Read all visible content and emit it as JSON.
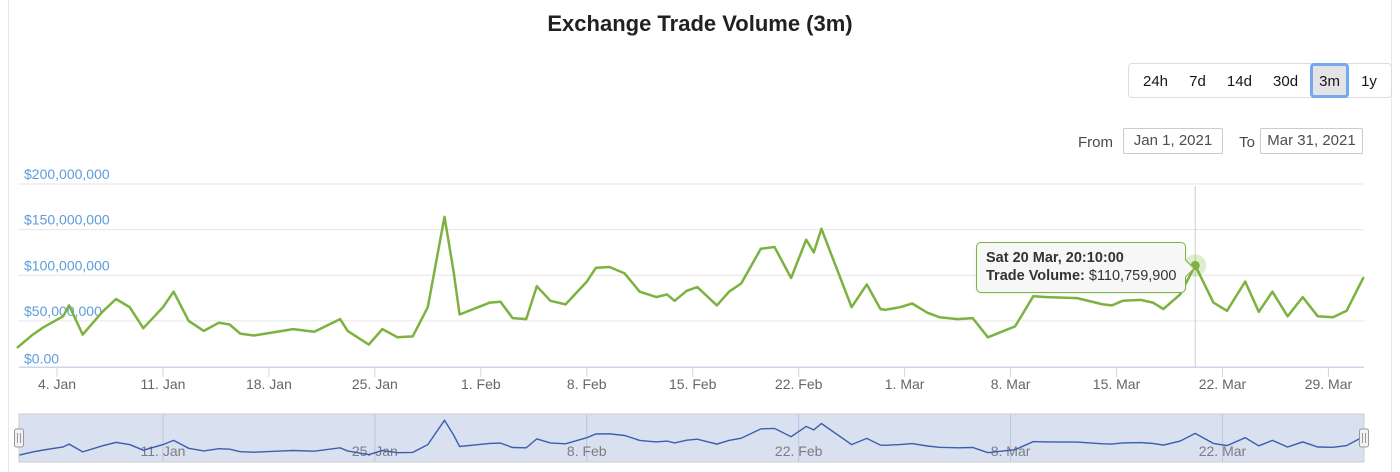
{
  "page": {
    "title": "Exchange Trade Volume (3m)"
  },
  "range_selector": {
    "buttons": [
      "24h",
      "7d",
      "14d",
      "30d",
      "3m",
      "1y"
    ],
    "selected": "3m",
    "selected_border_color": "#74a9f0",
    "from_label": "From",
    "from_value": "Jan 1, 2021",
    "to_label": "To",
    "to_value": "Mar 31, 2021"
  },
  "tooltip": {
    "timestamp": "Sat 20 Mar, 20:10:00",
    "series_label": "Trade Volume:",
    "value": "$110,759,900"
  },
  "chart_data": {
    "type": "line",
    "title": "Exchange Trade Volume (3m)",
    "unit": "USD millions",
    "series": [
      {
        "name": "Trade Volume",
        "color": "#7cb23f",
        "points_day_value_musd": [
          [
            0.4,
            21
          ],
          [
            1.4,
            35
          ],
          [
            2.1,
            43
          ],
          [
            3.4,
            55
          ],
          [
            3.8,
            67
          ],
          [
            4.7,
            35
          ],
          [
            6.0,
            60
          ],
          [
            6.9,
            74
          ],
          [
            7.8,
            65
          ],
          [
            8.7,
            42
          ],
          [
            10.0,
            65
          ],
          [
            10.7,
            82
          ],
          [
            11.7,
            50
          ],
          [
            12.7,
            39
          ],
          [
            13.7,
            48
          ],
          [
            14.4,
            46
          ],
          [
            15.1,
            36
          ],
          [
            16.0,
            34
          ],
          [
            17.9,
            39
          ],
          [
            18.6,
            41
          ],
          [
            20.0,
            38
          ],
          [
            21.7,
            52
          ],
          [
            22.2,
            39
          ],
          [
            23.6,
            24
          ],
          [
            24.5,
            41
          ],
          [
            25.5,
            32
          ],
          [
            26.5,
            33
          ],
          [
            27.5,
            65
          ],
          [
            28.6,
            164
          ],
          [
            29.2,
            104
          ],
          [
            29.6,
            57
          ],
          [
            31.6,
            70
          ],
          [
            32.3,
            71
          ],
          [
            33.1,
            53
          ],
          [
            34.0,
            52
          ],
          [
            34.7,
            88
          ],
          [
            35.6,
            72
          ],
          [
            36.6,
            68
          ],
          [
            38.0,
            93
          ],
          [
            38.6,
            108
          ],
          [
            39.5,
            109
          ],
          [
            40.5,
            102
          ],
          [
            41.5,
            82
          ],
          [
            42.6,
            76
          ],
          [
            43.3,
            79
          ],
          [
            43.8,
            72
          ],
          [
            44.6,
            83
          ],
          [
            45.3,
            87
          ],
          [
            46.6,
            67
          ],
          [
            47.4,
            82
          ],
          [
            48.2,
            91
          ],
          [
            49.5,
            129
          ],
          [
            50.4,
            131
          ],
          [
            51.5,
            97
          ],
          [
            52.5,
            139
          ],
          [
            53.0,
            125
          ],
          [
            53.5,
            151
          ],
          [
            55.5,
            65
          ],
          [
            56.5,
            90
          ],
          [
            57.4,
            63
          ],
          [
            57.7,
            62
          ],
          [
            58.7,
            65
          ],
          [
            59.5,
            69
          ],
          [
            60.5,
            59
          ],
          [
            61.3,
            54
          ],
          [
            62.5,
            52
          ],
          [
            63.5,
            53
          ],
          [
            64.5,
            32
          ],
          [
            65.4,
            38
          ],
          [
            66.3,
            44
          ],
          [
            67.5,
            77
          ],
          [
            68.4,
            76
          ],
          [
            70.4,
            75
          ],
          [
            72.1,
            68
          ],
          [
            72.7,
            67
          ],
          [
            73.4,
            72
          ],
          [
            74.6,
            73
          ],
          [
            75.4,
            70
          ],
          [
            76.1,
            63
          ],
          [
            77.2,
            79
          ],
          [
            78.2,
            110.7599
          ],
          [
            79.4,
            70
          ],
          [
            80.3,
            61
          ],
          [
            81.5,
            93
          ],
          [
            82.4,
            60
          ],
          [
            83.3,
            82
          ],
          [
            84.3,
            55
          ],
          [
            85.3,
            76
          ],
          [
            86.3,
            55
          ],
          [
            87.3,
            54
          ],
          [
            88.2,
            61
          ],
          [
            89.3,
            97
          ]
        ]
      }
    ],
    "x_axis": {
      "range": [
        "Jan 1, 2021",
        "Mar 31, 2021"
      ],
      "label_color": "#666666",
      "ticks": [
        {
          "day": 3,
          "label": "4. Jan"
        },
        {
          "day": 10,
          "label": "11. Jan"
        },
        {
          "day": 17,
          "label": "18. Jan"
        },
        {
          "day": 24,
          "label": "25. Jan"
        },
        {
          "day": 31,
          "label": "1. Feb"
        },
        {
          "day": 38,
          "label": "8. Feb"
        },
        {
          "day": 45,
          "label": "15. Feb"
        },
        {
          "day": 52,
          "label": "22. Feb"
        },
        {
          "day": 59,
          "label": "1. Mar"
        },
        {
          "day": 66,
          "label": "8. Mar"
        },
        {
          "day": 73,
          "label": "15. Mar"
        },
        {
          "day": 80,
          "label": "22. Mar"
        },
        {
          "day": 87,
          "label": "29. Mar"
        }
      ]
    },
    "y_axis": {
      "min_musd": 0,
      "max_musd": 200,
      "label_color": "#5d9cdb",
      "ticks": [
        {
          "value_musd": 0,
          "label": "$0.00"
        },
        {
          "value_musd": 50,
          "label": "$50,000,000"
        },
        {
          "value_musd": 100,
          "label": "$100,000,000"
        },
        {
          "value_musd": 150,
          "label": "$150,000,000"
        },
        {
          "value_musd": 200,
          "label": "$200,000,000"
        }
      ]
    },
    "highlight": {
      "day": 78.2,
      "value_usd": 110759900,
      "timestamp": "Sat 20 Mar, 20:10:00"
    },
    "navigator": {
      "line_color": "#3a5fad",
      "mask_color": "rgba(102,133,194,0.25)",
      "ticks": [
        {
          "day": 10,
          "label": "11. Jan"
        },
        {
          "day": 24,
          "label": "25. Jan"
        },
        {
          "day": 38,
          "label": "8. Feb"
        },
        {
          "day": 52,
          "label": "22. Feb"
        },
        {
          "day": 66,
          "label": "8. Mar"
        },
        {
          "day": 80,
          "label": "22. Mar"
        }
      ]
    },
    "grid_color": "#e6e6e6",
    "axis_line_color": "#ccd6eb",
    "crosshair_color": "#cccccc"
  }
}
